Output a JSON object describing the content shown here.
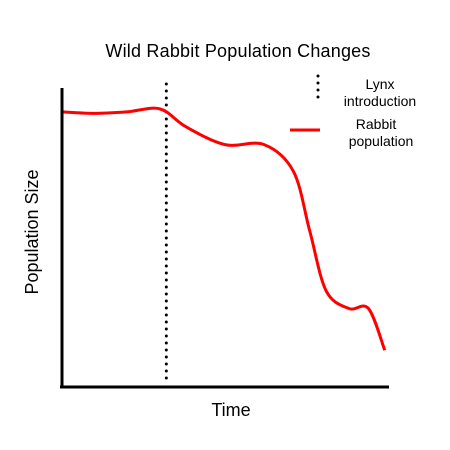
{
  "chart_data": {
    "type": "line",
    "title": "Wild Rabbit Population Changes",
    "xlabel": "Time",
    "ylabel": "Population Size",
    "grid": false,
    "x_ticks": false,
    "y_ticks": false,
    "legend_placement": "top-right",
    "legend": [
      {
        "label_line1": "Lynx",
        "label_line2": "introduction",
        "style": "dotted",
        "color": "#000000"
      },
      {
        "label_line1": "Rabbit",
        "label_line2": "population",
        "style": "solid",
        "color": "#ff0000"
      }
    ],
    "series": [
      {
        "name": "Rabbit population",
        "color": "#ff0000",
        "points": [
          [
            0.0,
            0.92
          ],
          [
            0.1,
            0.915
          ],
          [
            0.2,
            0.92
          ],
          [
            0.3,
            0.93
          ],
          [
            0.38,
            0.87
          ],
          [
            0.5,
            0.81
          ],
          [
            0.62,
            0.81
          ],
          [
            0.71,
            0.72
          ],
          [
            0.76,
            0.52
          ],
          [
            0.81,
            0.32
          ],
          [
            0.88,
            0.26
          ],
          [
            0.94,
            0.26
          ],
          [
            0.99,
            0.12
          ]
        ]
      }
    ],
    "annotations": [
      {
        "name": "Lynx introduction",
        "type": "vertical-dotted-line",
        "x": 0.32,
        "color": "#000000"
      }
    ],
    "xlim": [
      0,
      1
    ],
    "ylim": [
      0,
      1
    ]
  }
}
